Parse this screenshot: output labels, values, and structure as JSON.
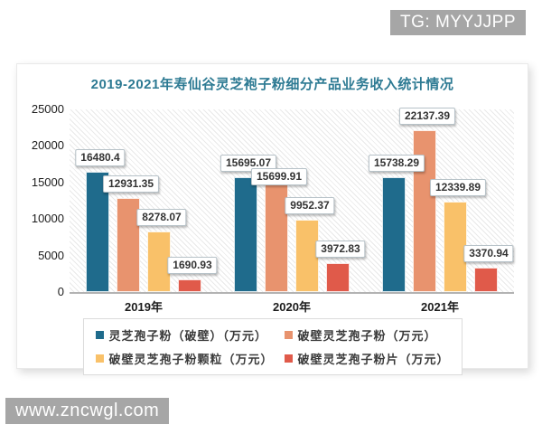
{
  "badges": {
    "tg": "TG: MYYJJPP",
    "watermark": "www.zncwgl.com"
  },
  "chart_data": {
    "type": "bar",
    "title": "2019-2021年寿仙谷灵芝袍子粉细分产品业务收入统计情况",
    "title_color": "#2d7a93",
    "categories": [
      "2019年",
      "2020年",
      "2021年"
    ],
    "series": [
      {
        "name": "灵芝孢子粉（破壁）（万元）",
        "color": "#1f6b8c",
        "values": [
          16480.4,
          15695.07,
          15738.29
        ]
      },
      {
        "name": "破壁灵芝孢子粉（万元）",
        "color": "#e8936e",
        "values": [
          12931.35,
          15699.91,
          22137.39
        ]
      },
      {
        "name": "破壁灵芝孢子粉颗粒（万元）",
        "color": "#f9c169",
        "values": [
          8278.07,
          9952.37,
          12339.89
        ]
      },
      {
        "name": "破壁灵芝孢子粉片（万元）",
        "color": "#e05a4a",
        "values": [
          1690.93,
          3972.83,
          3370.94
        ]
      }
    ],
    "y_ticks": [
      25000,
      20000,
      15000,
      10000,
      5000,
      0
    ],
    "ylim": [
      0,
      25000
    ],
    "data_labels": true,
    "legend_position": "bottom",
    "grid": false,
    "plot_background": "diagonal-hatch"
  }
}
